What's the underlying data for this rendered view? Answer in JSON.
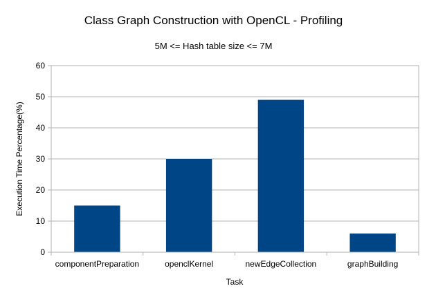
{
  "chart_data": {
    "type": "bar",
    "title": "Class Graph Construction with OpenCL - Profiling",
    "subtitle": "5M <= Hash table size <= 7M",
    "xlabel": "Task",
    "ylabel": "Execution Time Percentage(%)",
    "categories": [
      "componentPreparation",
      "openclKernel",
      "newEdgeCollection",
      "graphBuilding"
    ],
    "values": [
      15,
      30,
      49,
      6
    ],
    "ylim": [
      0,
      60
    ],
    "yticks": [
      "0",
      "10",
      "20",
      "30",
      "40",
      "50",
      "60"
    ],
    "grid": true,
    "legend": "none",
    "bar_color": "#004586",
    "grid_color": "#b3b3b3"
  }
}
